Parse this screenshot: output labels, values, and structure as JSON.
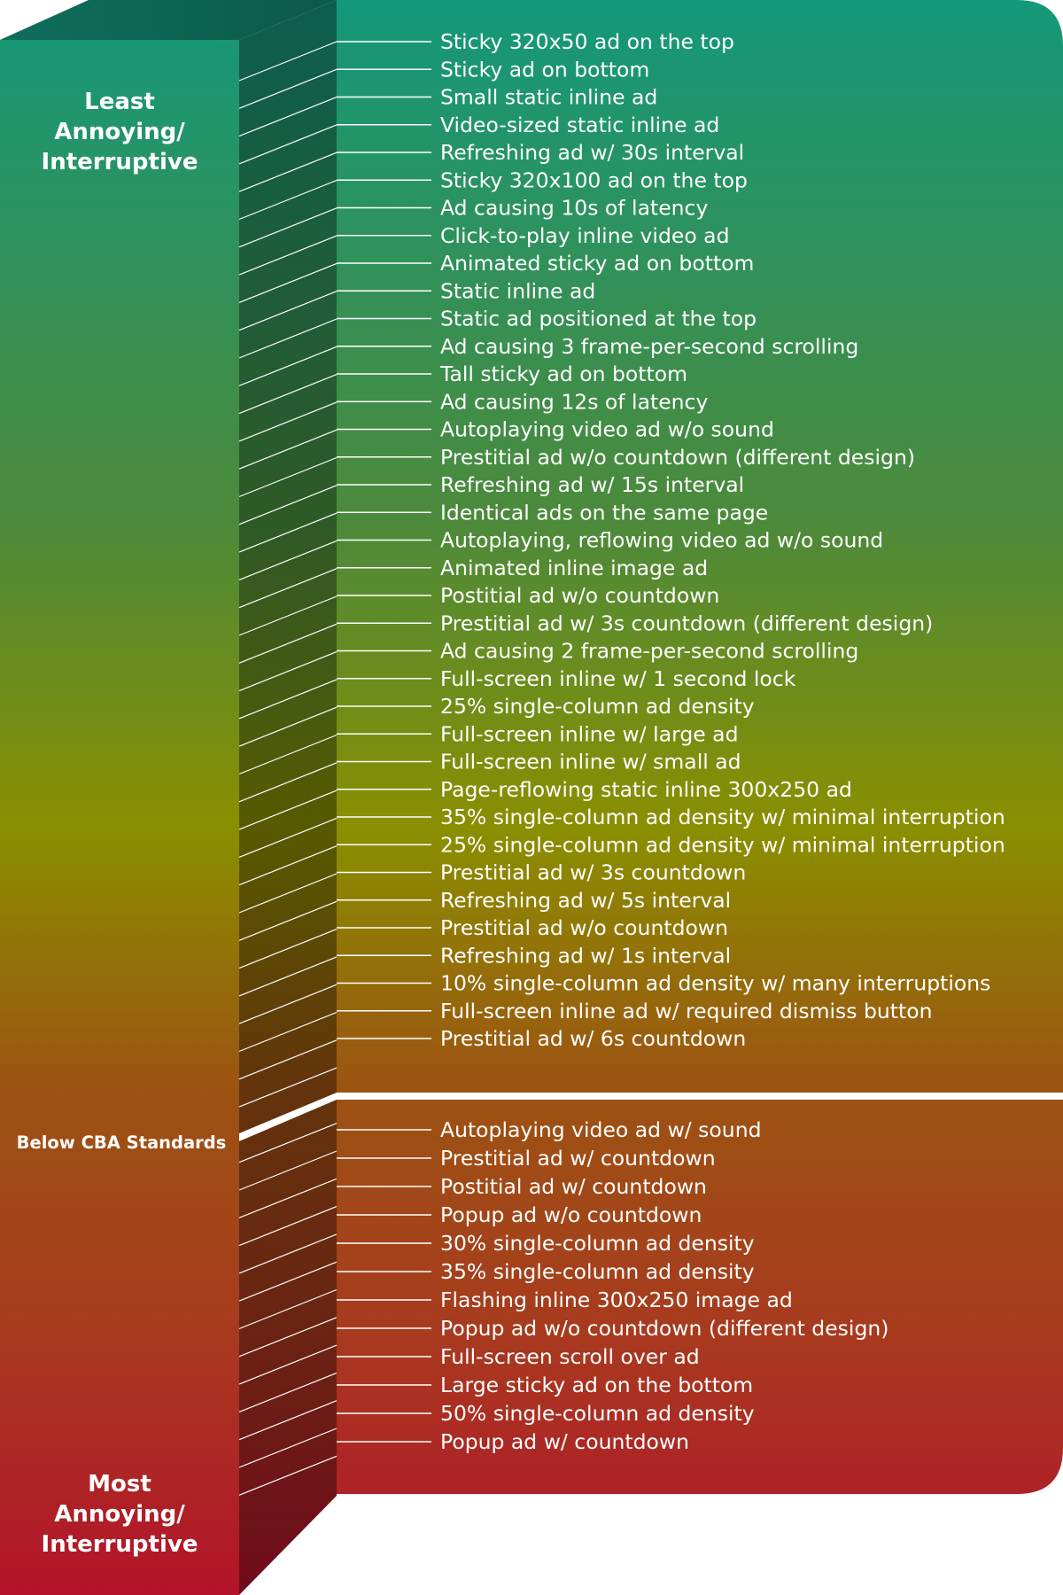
{
  "side_labels": {
    "top": [
      "Least",
      "Annoying/",
      "Interruptive"
    ],
    "middle": "Below CBA Standards",
    "bottom": [
      "Most",
      "Annoying/",
      "Interruptive"
    ]
  },
  "above_standards": [
    "Sticky 320x50 ad on the top",
    "Sticky ad on bottom",
    "Small static inline ad",
    "Video-sized static inline ad",
    "Refreshing ad w/ 30s interval",
    "Sticky 320x100 ad on the top",
    "Ad causing 10s of latency",
    "Click-to-play inline video ad",
    "Animated sticky ad on bottom",
    "Static inline ad",
    "Static ad positioned at the top",
    "Ad causing 3 frame-per-second scrolling",
    "Tall sticky ad on bottom",
    "Ad causing 12s of latency",
    "Autoplaying video ad w/o sound",
    "Prestitial ad w/o countdown (different design)",
    "Refreshing ad w/ 15s interval",
    "Identical ads on the same page",
    "Autoplaying, reflowing video ad w/o sound",
    "Animated inline image ad",
    "Postitial ad w/o countdown",
    "Prestitial ad w/ 3s countdown (different design)",
    "Ad causing 2 frame-per-second scrolling",
    "Full-screen inline w/ 1 second lock",
    "25% single-column ad density",
    "Full-screen inline w/ large ad",
    "Full-screen inline w/ small ad",
    "Page-reflowing static inline 300x250 ad",
    "35% single-column ad density w/ minimal interruption",
    "25% single-column ad density w/ minimal interruption",
    "Prestitial ad w/ 3s countdown",
    "Refreshing ad w/ 5s interval",
    "Prestitial ad w/o countdown",
    "Refreshing ad w/ 1s interval",
    "10% single-column ad density w/ many interruptions",
    "Full-screen inline ad w/ required dismiss button",
    "Prestitial ad w/ 6s countdown"
  ],
  "below_standards": [
    "Autoplaying video ad w/ sound",
    "Prestitial ad w/ countdown",
    "Postitial ad w/ countdown",
    "Popup ad w/o countdown",
    "30% single-column ad density",
    "35% single-column ad density",
    "Flashing inline 300x250 image ad",
    "Popup ad w/o countdown (different design)",
    "Full-screen scroll over ad",
    "Large sticky ad on the bottom",
    "50% single-column ad density",
    "Popup ad w/ countdown"
  ],
  "colors": {
    "green": "#14987a",
    "olive": "#8a8f00",
    "orange": "#9c5412",
    "red": "#b3132a",
    "separator": "#ffffff",
    "text": "#ffffff"
  }
}
